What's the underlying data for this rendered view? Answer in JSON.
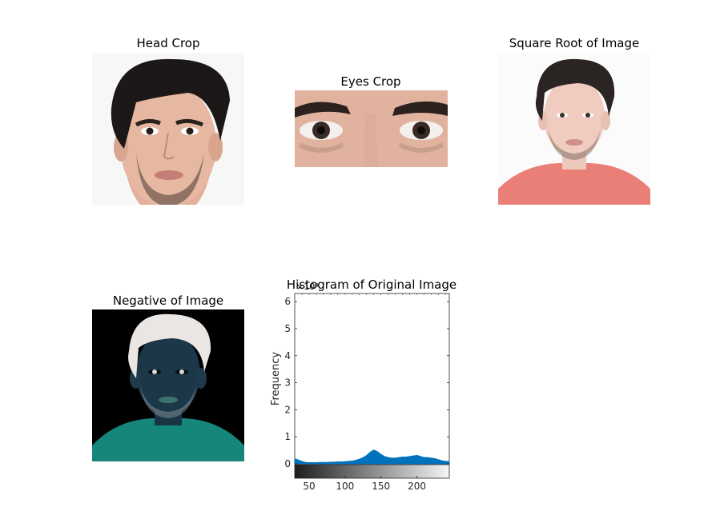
{
  "panels": {
    "head_crop": {
      "title": "Head Crop"
    },
    "eyes_crop": {
      "title": "Eyes Crop"
    },
    "sqrt_image": {
      "title": "Square Root of Image"
    },
    "negative": {
      "title": "Negative of Image"
    }
  },
  "chart_data": {
    "type": "area",
    "title": "Histogram of Original Image",
    "xlabel": "",
    "ylabel": "Frequency",
    "y_exponent_label": "×10⁴",
    "xlim": [
      30,
      245
    ],
    "ylim": [
      0,
      6.3
    ],
    "x_ticks": [
      50,
      100,
      150,
      200
    ],
    "y_ticks": [
      0,
      1,
      2,
      3,
      4,
      5,
      6
    ],
    "colorbar": "gray",
    "grid": false,
    "series": [
      {
        "color": "#0072BD",
        "x": [
          30,
          35,
          40,
          45,
          50,
          55,
          60,
          65,
          70,
          75,
          80,
          85,
          90,
          95,
          100,
          105,
          110,
          115,
          120,
          125,
          130,
          135,
          140,
          145,
          150,
          155,
          160,
          165,
          170,
          175,
          180,
          185,
          190,
          195,
          200,
          205,
          210,
          215,
          220,
          225,
          230,
          235,
          240,
          245
        ],
        "values": [
          0.2,
          0.15,
          0.1,
          0.06,
          0.05,
          0.05,
          0.05,
          0.06,
          0.06,
          0.06,
          0.07,
          0.07,
          0.08,
          0.08,
          0.09,
          0.1,
          0.11,
          0.14,
          0.18,
          0.24,
          0.32,
          0.44,
          0.52,
          0.46,
          0.36,
          0.28,
          0.24,
          0.22,
          0.22,
          0.24,
          0.26,
          0.26,
          0.28,
          0.3,
          0.32,
          0.28,
          0.24,
          0.24,
          0.22,
          0.2,
          0.16,
          0.12,
          0.1,
          0.09
        ]
      }
    ]
  }
}
